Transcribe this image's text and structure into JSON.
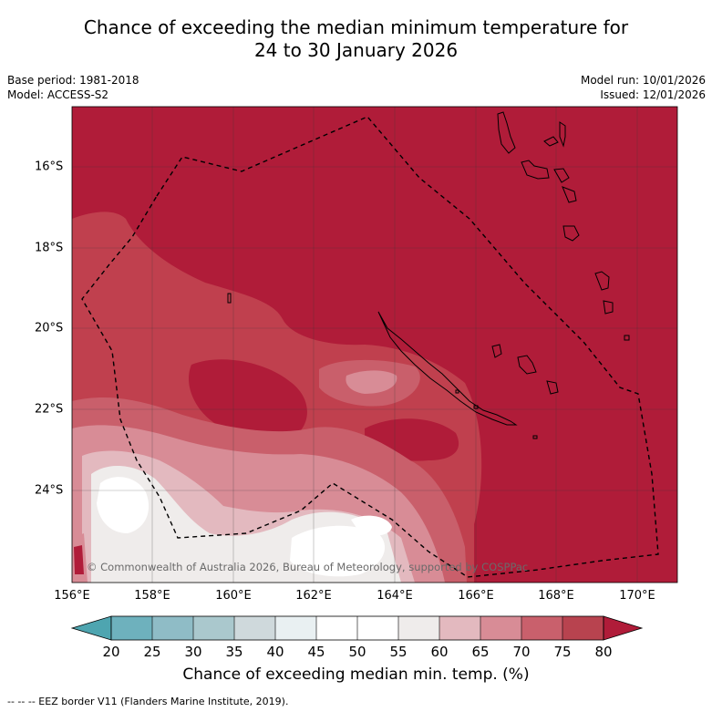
{
  "title_line1": "Chance of exceeding the median minimum temperature for",
  "title_line2": "24 to 30 January 2026",
  "meta": {
    "base_period": "Base period: 1981-2018",
    "model": "Model: ACCESS-S2",
    "model_run": "Model run: 10/01/2026",
    "issued": "Issued: 12/01/2026"
  },
  "map": {
    "lon_ticks": [
      "156°E",
      "158°E",
      "160°E",
      "162°E",
      "164°E",
      "166°E",
      "168°E",
      "170°E"
    ],
    "lat_ticks": [
      "16°S",
      "18°S",
      "20°S",
      "22°S",
      "24°S"
    ],
    "copyright": "© Commonwealth of Australia 2026, Bureau of Meteorology, supported by COSPPac",
    "dominant_category": "80"
  },
  "colorbar": {
    "tick_labels": [
      "20",
      "25",
      "30",
      "35",
      "40",
      "45",
      "50",
      "55",
      "60",
      "65",
      "70",
      "75",
      "80"
    ],
    "colors": [
      "#4ea5b0",
      "#6eb1bd",
      "#8fbcc6",
      "#aac8cd",
      "#cfd9dc",
      "#e9f0f2",
      "#ffffff",
      "#ffffff",
      "#efeceb",
      "#e3b9bf",
      "#d88c96",
      "#c9606c",
      "#b8434f",
      "#b01c39"
    ],
    "title": "Chance of exceeding median min. temp. (%)"
  },
  "footer": "--  --  -- EEZ border V11 (Flanders Marine Institute, 2019)."
}
